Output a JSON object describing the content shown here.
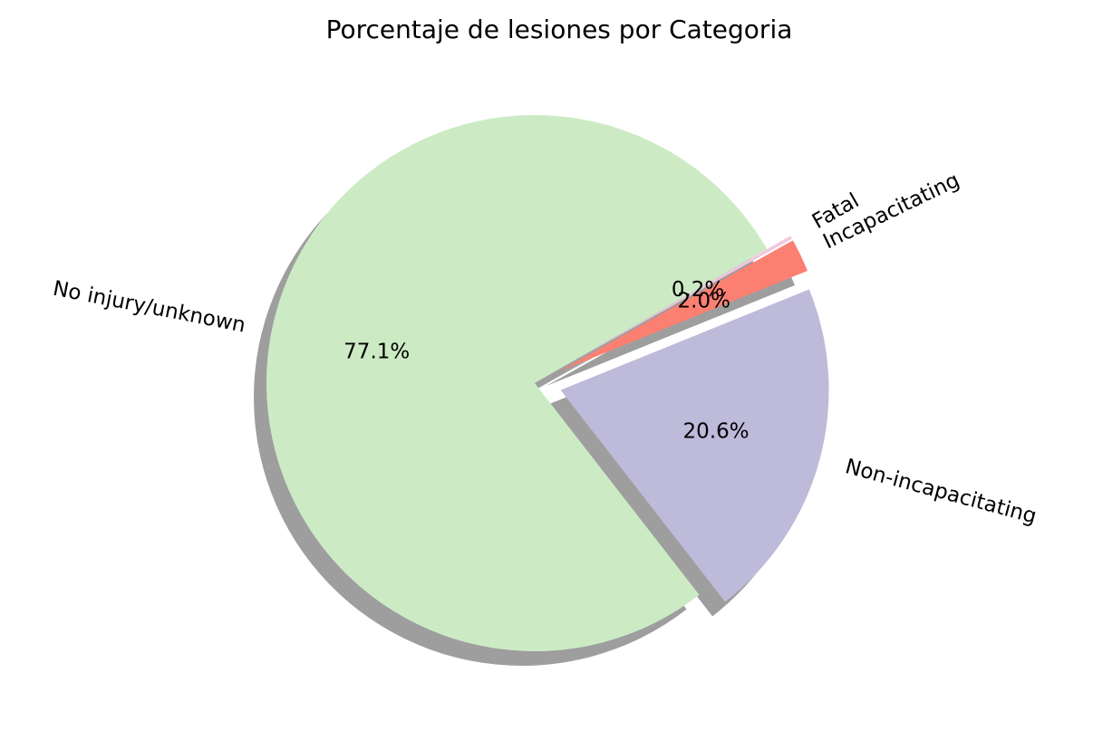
{
  "chart_data": {
    "type": "pie",
    "title": "Porcentaje de lesiones por Categoria",
    "slices": [
      {
        "label": "No injury/unknown",
        "value": 77.1,
        "pct_label": "77.1%",
        "color": "#ccebc5",
        "exploded": false
      },
      {
        "label": "Non-incapacitating",
        "value": 20.6,
        "pct_label": "20.6%",
        "color": "#bebada",
        "exploded": true
      },
      {
        "label": "Incapacitating",
        "value": 2.0,
        "pct_label": "2.0%",
        "color": "#fb8072",
        "exploded": true
      },
      {
        "label": "Fatal",
        "value": 0.2,
        "pct_label": "0.2%",
        "color": "#f3c6e1",
        "exploded": true
      }
    ],
    "shadow": true
  }
}
